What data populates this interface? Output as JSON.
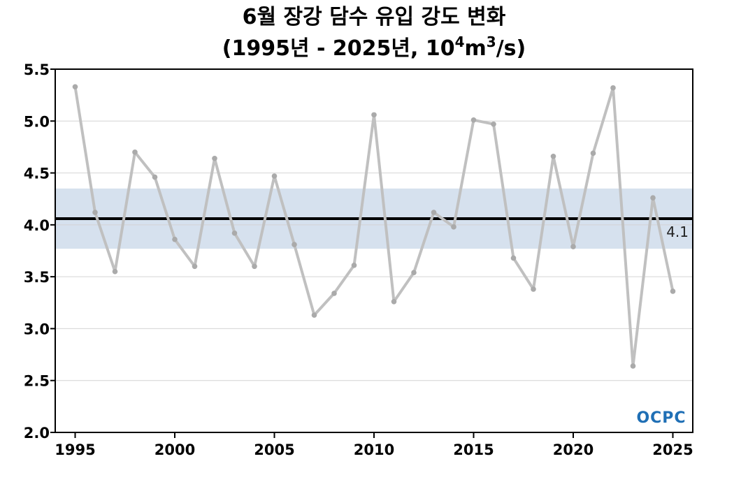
{
  "chart_data": {
    "type": "line",
    "title_line1": "6월 장강 담수 유입 강도 변화",
    "title_line2_prefix": "(1995년 - 2025년, 10",
    "title_line2_sup1": "4",
    "title_line2_mid": "m",
    "title_line2_sup2": "3",
    "title_line2_suffix": "/s)",
    "xlabel": "",
    "ylabel": "",
    "xlim": [
      1994,
      2026
    ],
    "ylim": [
      2.0,
      5.5
    ],
    "x_ticks": [
      1995,
      2000,
      2005,
      2010,
      2015,
      2020,
      2025
    ],
    "y_ticks": [
      "2.0",
      "2.5",
      "3.0",
      "3.5",
      "4.0",
      "4.5",
      "5.0",
      "5.5"
    ],
    "grid": true,
    "series": [
      {
        "name": "",
        "color": "#c0c0c0",
        "x": [
          1995,
          1996,
          1997,
          1998,
          1999,
          2000,
          2001,
          2002,
          2003,
          2004,
          2005,
          2006,
          2007,
          2008,
          2009,
          2010,
          2011,
          2012,
          2013,
          2014,
          2015,
          2016,
          2017,
          2018,
          2019,
          2020,
          2021,
          2022,
          2023,
          2024,
          2025
        ],
        "y": [
          5.33,
          4.12,
          3.55,
          4.7,
          4.46,
          3.86,
          3.6,
          4.64,
          3.92,
          3.6,
          4.47,
          3.81,
          3.13,
          3.34,
          3.61,
          5.06,
          3.26,
          3.54,
          4.12,
          3.98,
          5.01,
          4.97,
          3.68,
          3.38,
          4.66,
          3.79,
          4.69,
          5.32,
          2.64,
          4.26,
          3.36
        ]
      }
    ],
    "mean_value": 4.06,
    "mean_label": "4.1",
    "mean_color": "#000000",
    "std_band": [
      3.77,
      4.35
    ],
    "band_color": "#d6e1ee",
    "logo_text": "OCPC"
  }
}
